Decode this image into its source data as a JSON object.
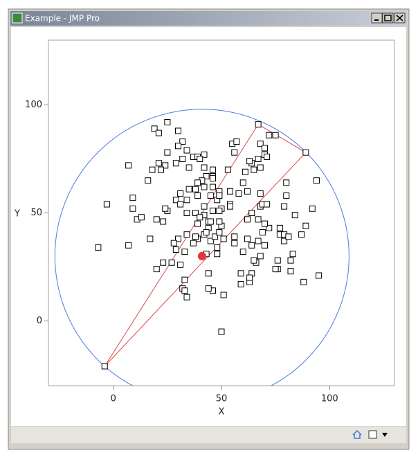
{
  "window": {
    "title": "Example - JMP Pro"
  },
  "chart_data": {
    "type": "scatter",
    "x_label": "X",
    "y_label": "Y",
    "x": [
      19,
      25,
      21,
      30,
      32,
      30,
      34,
      37,
      42,
      39,
      25,
      21,
      24,
      22,
      29,
      32,
      35,
      40,
      42,
      46,
      46,
      43,
      53,
      55,
      57,
      67,
      72,
      75,
      68,
      70,
      67,
      64,
      65,
      68,
      71,
      61,
      60,
      62,
      68,
      58,
      54,
      50,
      48,
      49,
      49,
      46,
      46,
      45,
      41,
      39,
      38,
      42,
      39,
      35,
      34,
      31,
      29,
      31,
      25,
      24,
      23,
      20,
      34,
      38,
      42,
      46,
      42,
      44,
      44,
      42,
      39,
      39,
      38,
      34,
      33,
      30,
      28,
      29,
      37,
      43,
      45,
      47,
      49,
      50,
      49,
      48,
      48,
      44,
      46,
      51,
      50,
      59,
      59,
      63,
      64,
      56,
      56,
      62,
      64,
      67,
      70,
      69,
      72,
      70,
      67,
      62,
      64,
      68,
      69,
      71,
      79,
      80,
      80,
      84,
      77,
      77,
      79,
      79,
      81,
      83,
      87,
      92,
      89,
      94,
      95,
      88,
      82,
      82,
      76,
      76,
      75,
      66,
      68,
      65,
      63,
      60,
      23,
      20,
      31,
      27,
      33,
      32,
      33,
      34,
      44,
      7,
      17,
      11,
      13,
      9,
      9,
      7,
      16,
      18,
      -7,
      -3,
      56,
      70,
      63,
      54,
      54,
      49,
      45,
      40,
      43,
      51,
      -4,
      89
    ],
    "y": [
      89,
      92,
      87,
      88,
      83,
      81,
      79,
      76,
      77,
      76,
      78,
      73,
      72,
      70,
      73,
      75,
      71,
      75,
      71,
      70,
      67,
      67,
      70,
      82,
      83,
      91,
      86,
      86,
      82,
      77,
      75,
      73,
      70,
      71,
      76,
      69,
      64,
      60,
      59,
      59,
      54,
      52,
      56,
      60,
      58,
      66,
      62,
      58,
      65,
      64,
      61,
      62,
      58,
      61,
      56,
      59,
      56,
      54,
      51,
      52,
      46,
      47,
      50,
      50,
      53,
      51,
      49,
      46,
      43,
      40,
      38,
      45,
      39,
      40,
      32,
      38,
      36,
      33,
      36,
      31,
      37,
      39,
      41,
      44,
      46,
      34,
      31,
      22,
      14,
      12,
      -5,
      17,
      22,
      18,
      22,
      36,
      39,
      38,
      35,
      37,
      35,
      41,
      43,
      45,
      47,
      47,
      50,
      53,
      54,
      54,
      53,
      64,
      58,
      49,
      43,
      40,
      40,
      37,
      39,
      31,
      40,
      52,
      44,
      65,
      21,
      18,
      23,
      28,
      24,
      28,
      24,
      27,
      30,
      28,
      20,
      32,
      27,
      24,
      26,
      27,
      19,
      15,
      14,
      11,
      15,
      35,
      38,
      47,
      48,
      57,
      52,
      72,
      65,
      70,
      34,
      54,
      78,
      80,
      74,
      60,
      53,
      51,
      46,
      48,
      41,
      38,
      -21,
      78
    ],
    "marker_color": "#000000",
    "circle": {
      "cx": 41,
      "cy": 30,
      "r": 68,
      "color": "#4a7be0"
    },
    "center_color": "#e8323c",
    "triangle": {
      "x": [
        -4,
        67,
        89
      ],
      "y": [
        -21,
        91,
        78
      ],
      "color": "#e04848"
    },
    "xlim": [
      -30,
      130
    ],
    "ylim": [
      -30,
      130
    ],
    "xticks": [
      0,
      50,
      100
    ],
    "yticks": [
      0,
      50,
      100
    ],
    "grid": false
  }
}
